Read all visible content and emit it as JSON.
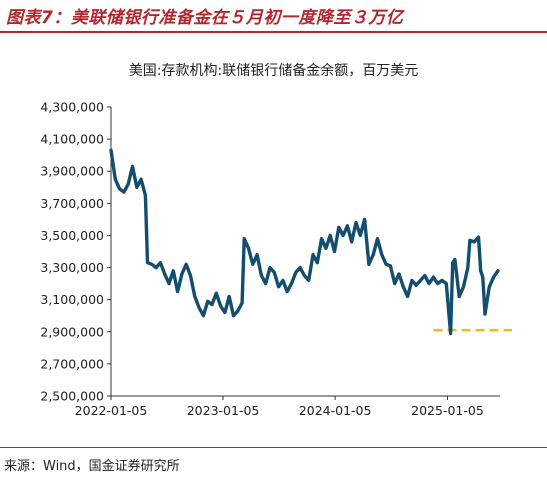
{
  "figure": {
    "title": "图表7：美联储银行准备金在５月初一度降至３万亿",
    "source": "来源：Wind，国金证券研究所"
  },
  "chart_data": {
    "type": "line",
    "subtitle": "美国:存款机构:联储银行储备金余额，百万美元",
    "y_ticks": [
      "4,300,000",
      "4,100,000",
      "3,900,000",
      "3,700,000",
      "3,500,000",
      "3,300,000",
      "3,100,000",
      "2,900,000",
      "2,700,000",
      "2,500,000"
    ],
    "y_tick_values": [
      4300000,
      4100000,
      3900000,
      3700000,
      3500000,
      3300000,
      3100000,
      2900000,
      2700000,
      2500000
    ],
    "ylim": [
      2500000,
      4300000
    ],
    "x_ticks": [
      "2022-01-05",
      "2023-01-05",
      "2024-01-05",
      "2025-01-05"
    ],
    "x_tick_values": [
      "2022-01-05",
      "2023-01-05",
      "2024-01-05",
      "2025-01-05"
    ],
    "xlim": [
      "2022-01-05",
      "2025-06-25"
    ],
    "line_color": "#134e6f",
    "reference_color": "#f5b914",
    "reference_line": {
      "y": 2910000,
      "x_start": "2025-01-05",
      "x_end": "2025-06-25"
    },
    "series": [
      {
        "points": [
          [
            "2022-01-05",
            4030000
          ],
          [
            "2022-01-19",
            3850000
          ],
          [
            "2022-02-02",
            3790000
          ],
          [
            "2022-02-16",
            3770000
          ],
          [
            "2022-03-02",
            3820000
          ],
          [
            "2022-03-16",
            3930000
          ],
          [
            "2022-03-30",
            3800000
          ],
          [
            "2022-04-13",
            3850000
          ],
          [
            "2022-04-27",
            3750000
          ],
          [
            "2022-05-04",
            3330000
          ],
          [
            "2022-05-18",
            3320000
          ],
          [
            "2022-06-01",
            3300000
          ],
          [
            "2022-06-15",
            3330000
          ],
          [
            "2022-06-29",
            3260000
          ],
          [
            "2022-07-13",
            3200000
          ],
          [
            "2022-07-27",
            3280000
          ],
          [
            "2022-08-10",
            3150000
          ],
          [
            "2022-08-24",
            3260000
          ],
          [
            "2022-09-07",
            3320000
          ],
          [
            "2022-09-21",
            3250000
          ],
          [
            "2022-10-05",
            3120000
          ],
          [
            "2022-10-19",
            3050000
          ],
          [
            "2022-11-02",
            3000000
          ],
          [
            "2022-11-16",
            3090000
          ],
          [
            "2022-11-30",
            3070000
          ],
          [
            "2022-12-14",
            3140000
          ],
          [
            "2022-12-28",
            3060000
          ],
          [
            "2023-01-11",
            3020000
          ],
          [
            "2023-01-25",
            3120000
          ],
          [
            "2023-02-08",
            3000000
          ],
          [
            "2023-02-22",
            3030000
          ],
          [
            "2023-03-08",
            3080000
          ],
          [
            "2023-03-15",
            3480000
          ],
          [
            "2023-03-29",
            3420000
          ],
          [
            "2023-04-12",
            3320000
          ],
          [
            "2023-04-26",
            3380000
          ],
          [
            "2023-05-10",
            3250000
          ],
          [
            "2023-05-24",
            3200000
          ],
          [
            "2023-06-07",
            3300000
          ],
          [
            "2023-06-21",
            3270000
          ],
          [
            "2023-07-05",
            3180000
          ],
          [
            "2023-07-19",
            3220000
          ],
          [
            "2023-08-02",
            3150000
          ],
          [
            "2023-08-16",
            3200000
          ],
          [
            "2023-08-30",
            3270000
          ],
          [
            "2023-09-13",
            3300000
          ],
          [
            "2023-09-27",
            3250000
          ],
          [
            "2023-10-11",
            3220000
          ],
          [
            "2023-10-25",
            3380000
          ],
          [
            "2023-11-08",
            3330000
          ],
          [
            "2023-11-22",
            3480000
          ],
          [
            "2023-12-06",
            3420000
          ],
          [
            "2023-12-20",
            3500000
          ],
          [
            "2024-01-03",
            3400000
          ],
          [
            "2024-01-17",
            3550000
          ],
          [
            "2024-01-31",
            3500000
          ],
          [
            "2024-02-14",
            3560000
          ],
          [
            "2024-02-28",
            3460000
          ],
          [
            "2024-03-13",
            3580000
          ],
          [
            "2024-03-27",
            3500000
          ],
          [
            "2024-04-10",
            3600000
          ],
          [
            "2024-04-24",
            3320000
          ],
          [
            "2024-05-08",
            3380000
          ],
          [
            "2024-05-22",
            3480000
          ],
          [
            "2024-06-05",
            3380000
          ],
          [
            "2024-06-19",
            3320000
          ],
          [
            "2024-07-03",
            3310000
          ],
          [
            "2024-07-17",
            3200000
          ],
          [
            "2024-07-31",
            3260000
          ],
          [
            "2024-08-14",
            3180000
          ],
          [
            "2024-08-28",
            3120000
          ],
          [
            "2024-09-11",
            3220000
          ],
          [
            "2024-09-25",
            3190000
          ],
          [
            "2024-10-09",
            3220000
          ],
          [
            "2024-10-23",
            3250000
          ],
          [
            "2024-11-06",
            3200000
          ],
          [
            "2024-11-20",
            3240000
          ],
          [
            "2024-12-04",
            3200000
          ],
          [
            "2024-12-18",
            3220000
          ],
          [
            "2025-01-01",
            3200000
          ],
          [
            "2025-01-15",
            2890000
          ],
          [
            "2025-01-22",
            3330000
          ],
          [
            "2025-01-29",
            3350000
          ],
          [
            "2025-02-12",
            3120000
          ],
          [
            "2025-02-26",
            3180000
          ],
          [
            "2025-03-12",
            3300000
          ],
          [
            "2025-03-19",
            3470000
          ],
          [
            "2025-04-02",
            3460000
          ],
          [
            "2025-04-16",
            3490000
          ],
          [
            "2025-04-23",
            3280000
          ],
          [
            "2025-04-30",
            3240000
          ],
          [
            "2025-05-07",
            3010000
          ],
          [
            "2025-05-21",
            3180000
          ],
          [
            "2025-06-04",
            3240000
          ],
          [
            "2025-06-18",
            3280000
          ]
        ]
      }
    ]
  }
}
